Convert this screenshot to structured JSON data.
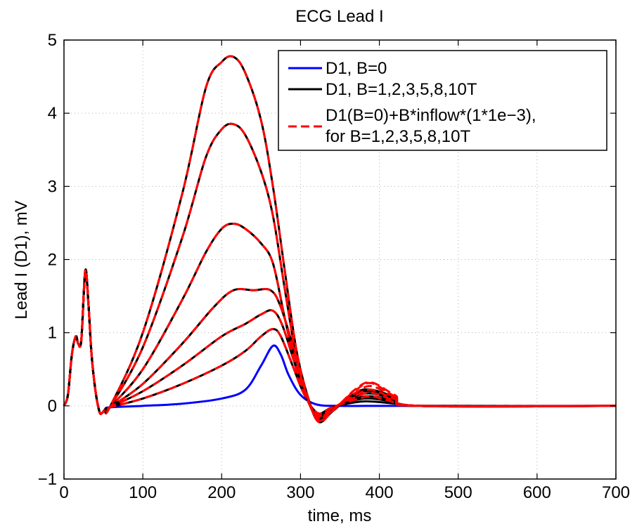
{
  "chart_data": {
    "type": "line",
    "title": "ECG Lead I",
    "xlabel": "time, ms",
    "ylabel": "Lead I (D1), mV",
    "xlim": [
      0,
      700
    ],
    "ylim": [
      -1,
      5
    ],
    "xticks": [
      0,
      100,
      200,
      300,
      400,
      500,
      600,
      700
    ],
    "yticks": [
      -1,
      0,
      1,
      2,
      3,
      4,
      5
    ],
    "xtick_labels": [
      "0",
      "100",
      "200",
      "300",
      "400",
      "500",
      "600",
      "700"
    ],
    "ytick_labels": [
      "−1",
      "0",
      "1",
      "2",
      "3",
      "4",
      "5"
    ],
    "grid": true,
    "legend_position": "top-right",
    "legend": [
      {
        "label": "D1, B=0",
        "color": "#0000ff",
        "style": "solid"
      },
      {
        "label": "D1, B=1,2,3,5,8,10T",
        "color": "#000000",
        "style": "solid"
      },
      {
        "label": "D1(B=0)+B*inflow*(1*1e−3),",
        "label2": "for B=1,2,3,5,8,10T",
        "color": "#ff0000",
        "style": "dashed"
      }
    ],
    "qrs_points": [
      [
        0,
        0
      ],
      [
        5,
        0.15
      ],
      [
        10,
        0.7
      ],
      [
        15,
        0.95
      ],
      [
        18,
        0.85
      ],
      [
        22,
        0.9
      ],
      [
        27,
        1.85
      ],
      [
        31,
        1.4
      ],
      [
        35,
        0.7
      ],
      [
        40,
        0.2
      ],
      [
        45,
        -0.08
      ],
      [
        48,
        -0.1
      ],
      [
        52,
        -0.05
      ],
      [
        58,
        -0.02
      ]
    ],
    "baseline": {
      "name": "D1, B=0",
      "points": [
        [
          58,
          -0.02
        ],
        [
          100,
          0.0
        ],
        [
          150,
          0.03
        ],
        [
          200,
          0.1
        ],
        [
          230,
          0.22
        ],
        [
          250,
          0.55
        ],
        [
          265,
          0.82
        ],
        [
          275,
          0.7
        ],
        [
          285,
          0.42
        ],
        [
          300,
          0.15
        ],
        [
          320,
          0.02
        ],
        [
          350,
          0.0
        ],
        [
          400,
          0.0
        ],
        [
          450,
          0.0
        ],
        [
          500,
          0.0
        ],
        [
          600,
          0.0
        ],
        [
          700,
          0.0
        ]
      ]
    },
    "field_curves": [
      {
        "name": "B=1T",
        "points": [
          [
            58,
            -0.02
          ],
          [
            100,
            0.1
          ],
          [
            150,
            0.3
          ],
          [
            200,
            0.55
          ],
          [
            230,
            0.75
          ],
          [
            250,
            0.95
          ],
          [
            265,
            1.05
          ],
          [
            275,
            0.95
          ],
          [
            290,
            0.55
          ],
          [
            305,
            0.15
          ],
          [
            322,
            -0.1
          ],
          [
            340,
            -0.02
          ],
          [
            370,
            0.05
          ],
          [
            390,
            0.06
          ],
          [
            420,
            0.03
          ],
          [
            450,
            0.0
          ],
          [
            700,
            0.0
          ]
        ]
      },
      {
        "name": "B=2T",
        "points": [
          [
            58,
            -0.02
          ],
          [
            100,
            0.2
          ],
          [
            150,
            0.55
          ],
          [
            200,
            0.95
          ],
          [
            230,
            1.12
          ],
          [
            250,
            1.25
          ],
          [
            265,
            1.3
          ],
          [
            277,
            1.1
          ],
          [
            292,
            0.6
          ],
          [
            305,
            0.18
          ],
          [
            322,
            -0.13
          ],
          [
            340,
            -0.03
          ],
          [
            370,
            0.08
          ],
          [
            390,
            0.1
          ],
          [
            420,
            0.05
          ],
          [
            450,
            0.0
          ],
          [
            700,
            0.0
          ]
        ]
      },
      {
        "name": "B=3T",
        "points": [
          [
            58,
            -0.02
          ],
          [
            100,
            0.3
          ],
          [
            150,
            0.85
          ],
          [
            190,
            1.35
          ],
          [
            215,
            1.58
          ],
          [
            240,
            1.58
          ],
          [
            262,
            1.58
          ],
          [
            275,
            1.35
          ],
          [
            292,
            0.75
          ],
          [
            305,
            0.2
          ],
          [
            322,
            -0.15
          ],
          [
            340,
            -0.04
          ],
          [
            370,
            0.1
          ],
          [
            390,
            0.13
          ],
          [
            420,
            0.07
          ],
          [
            450,
            0.0
          ],
          [
            700,
            0.0
          ]
        ]
      },
      {
        "name": "B=5T",
        "points": [
          [
            58,
            -0.02
          ],
          [
            100,
            0.5
          ],
          [
            150,
            1.45
          ],
          [
            180,
            2.1
          ],
          [
            200,
            2.42
          ],
          [
            215,
            2.49
          ],
          [
            230,
            2.42
          ],
          [
            250,
            2.22
          ],
          [
            265,
            1.95
          ],
          [
            280,
            1.2
          ],
          [
            295,
            0.5
          ],
          [
            310,
            0.05
          ],
          [
            323,
            -0.18
          ],
          [
            340,
            -0.05
          ],
          [
            370,
            0.13
          ],
          [
            390,
            0.17
          ],
          [
            420,
            0.09
          ],
          [
            450,
            0.0
          ],
          [
            700,
            0.0
          ]
        ]
      },
      {
        "name": "B=8T",
        "points": [
          [
            58,
            -0.02
          ],
          [
            100,
            0.8
          ],
          [
            150,
            2.3
          ],
          [
            180,
            3.4
          ],
          [
            200,
            3.78
          ],
          [
            215,
            3.85
          ],
          [
            230,
            3.7
          ],
          [
            250,
            3.2
          ],
          [
            265,
            2.6
          ],
          [
            280,
            1.6
          ],
          [
            295,
            0.65
          ],
          [
            310,
            0.08
          ],
          [
            323,
            -0.2
          ],
          [
            340,
            -0.07
          ],
          [
            370,
            0.16
          ],
          [
            390,
            0.2
          ],
          [
            420,
            0.1
          ],
          [
            450,
            0.0
          ],
          [
            700,
            0.0
          ]
        ]
      },
      {
        "name": "B=10T",
        "points": [
          [
            58,
            -0.02
          ],
          [
            100,
            1.0
          ],
          [
            150,
            2.9
          ],
          [
            180,
            4.35
          ],
          [
            200,
            4.7
          ],
          [
            215,
            4.77
          ],
          [
            230,
            4.55
          ],
          [
            250,
            3.9
          ],
          [
            265,
            3.0
          ],
          [
            280,
            1.85
          ],
          [
            295,
            0.75
          ],
          [
            310,
            0.1
          ],
          [
            323,
            -0.22
          ],
          [
            340,
            -0.08
          ],
          [
            370,
            0.18
          ],
          [
            390,
            0.22
          ],
          [
            420,
            0.12
          ],
          [
            450,
            0.0
          ],
          [
            700,
            0.0
          ]
        ]
      }
    ],
    "approx_t_wave_peaks": [
      0.1,
      0.14,
      0.18,
      0.22,
      0.26,
      0.28
    ]
  }
}
